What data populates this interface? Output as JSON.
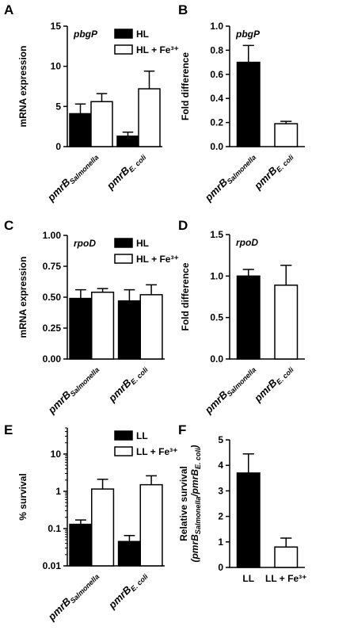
{
  "chart_data": [
    {
      "type": "bar",
      "panel": "A",
      "annotation": "pbgP",
      "ylabel": "mRNA expression",
      "categories": [
        {
          "name": "pmrB",
          "subscript": "Salmonella"
        },
        {
          "name": "pmrB",
          "subscript": "E. coli"
        }
      ],
      "series": [
        {
          "name": "HL",
          "color": "#000000",
          "values": [
            4.1,
            1.3
          ],
          "errors": [
            1.2,
            0.5
          ]
        },
        {
          "name": "HL + Fe³⁺",
          "color": "#ffffff",
          "values": [
            5.6,
            7.2
          ],
          "errors": [
            1.0,
            2.2
          ]
        }
      ],
      "ylim": [
        0,
        15
      ],
      "yticks": [
        0,
        5,
        10,
        15
      ],
      "legend": "upper right"
    },
    {
      "type": "bar",
      "panel": "B",
      "annotation": "pbgP",
      "ylabel": "Fold  difference",
      "categories": [
        {
          "name": "pmrB",
          "subscript": "Salmonella"
        },
        {
          "name": "pmrB",
          "subscript": "E. coli"
        }
      ],
      "values": [
        0.7,
        0.19
      ],
      "errors": [
        0.14,
        0.02
      ],
      "colors": [
        "#000000",
        "#ffffff"
      ],
      "ylim": [
        0,
        1.0
      ],
      "yticks": [
        {
          "value": 0,
          "label": "0.0"
        },
        0.2,
        0.4,
        0.6,
        0.8,
        {
          "value": 1.0,
          "label": "1.0"
        }
      ]
    },
    {
      "type": "bar",
      "panel": "C",
      "annotation": "rpoD",
      "ylabel": "mRNA expression",
      "categories": [
        {
          "name": "pmrB",
          "subscript": "Salmonella"
        },
        {
          "name": "pmrB",
          "subscript": "E. coli"
        }
      ],
      "series": [
        {
          "name": "HL",
          "color": "#000000",
          "values": [
            0.49,
            0.47
          ],
          "errors": [
            0.07,
            0.09
          ]
        },
        {
          "name": "HL + Fe³⁺",
          "color": "#ffffff",
          "values": [
            0.54,
            0.52
          ],
          "errors": [
            0.03,
            0.08
          ]
        }
      ],
      "ylim": [
        0,
        1.0
      ],
      "yticks": [
        {
          "value": 0,
          "label": "0.00"
        },
        0.25,
        {
          "value": 0.5,
          "label": "0.50"
        },
        0.75,
        {
          "value": 1.0,
          "label": "1.00"
        }
      ],
      "legend": "upper right"
    },
    {
      "type": "bar",
      "panel": "D",
      "annotation": "rpoD",
      "ylabel": "Fold  difference",
      "categories": [
        {
          "name": "pmrB",
          "subscript": "Salmonella"
        },
        {
          "name": "pmrB",
          "subscript": "E. coli"
        }
      ],
      "values": [
        1.0,
        0.89
      ],
      "errors": [
        0.08,
        0.24
      ],
      "colors": [
        "#000000",
        "#ffffff"
      ],
      "ylim": [
        0,
        1.5
      ],
      "yticks": [
        {
          "value": 0,
          "label": "0.0"
        },
        0.5,
        {
          "value": 1.0,
          "label": "1.0"
        },
        1.5
      ]
    },
    {
      "type": "bar",
      "panel": "E",
      "ylabel": "% survival",
      "yscale": "log",
      "categories": [
        {
          "name": "pmrB",
          "subscript": "Salmonella"
        },
        {
          "name": "pmrB",
          "subscript": "E. coli"
        }
      ],
      "series": [
        {
          "name": "LL",
          "color": "#000000",
          "values": [
            0.13,
            0.045
          ],
          "errors": [
            0.04,
            0.02
          ]
        },
        {
          "name": "LL + Fe³⁺",
          "color": "#ffffff",
          "values": [
            1.15,
            1.5
          ],
          "errors": [
            0.95,
            1.1
          ]
        }
      ],
      "ylim": [
        0.01,
        50
      ],
      "yticks": [
        0.01,
        0.1,
        1,
        10
      ],
      "legend": "upper right"
    },
    {
      "type": "bar",
      "panel": "F",
      "ylabel": "Relative  survival",
      "ylabel_line2": [
        {
          "text": "(pmrB"
        },
        {
          "text": "Salmonella",
          "sub": true
        },
        {
          "text": "/pmrB"
        },
        {
          "text": "E. coli",
          "sub": true
        },
        {
          "text": ")"
        }
      ],
      "categories": [
        "LL",
        "LL + Fe³⁺"
      ],
      "values": [
        3.7,
        0.8
      ],
      "errors": [
        0.75,
        0.35
      ],
      "colors": [
        "#000000",
        "#ffffff"
      ],
      "ylim": [
        0,
        5
      ],
      "yticks": [
        0,
        1,
        2,
        3,
        4,
        5
      ]
    }
  ]
}
